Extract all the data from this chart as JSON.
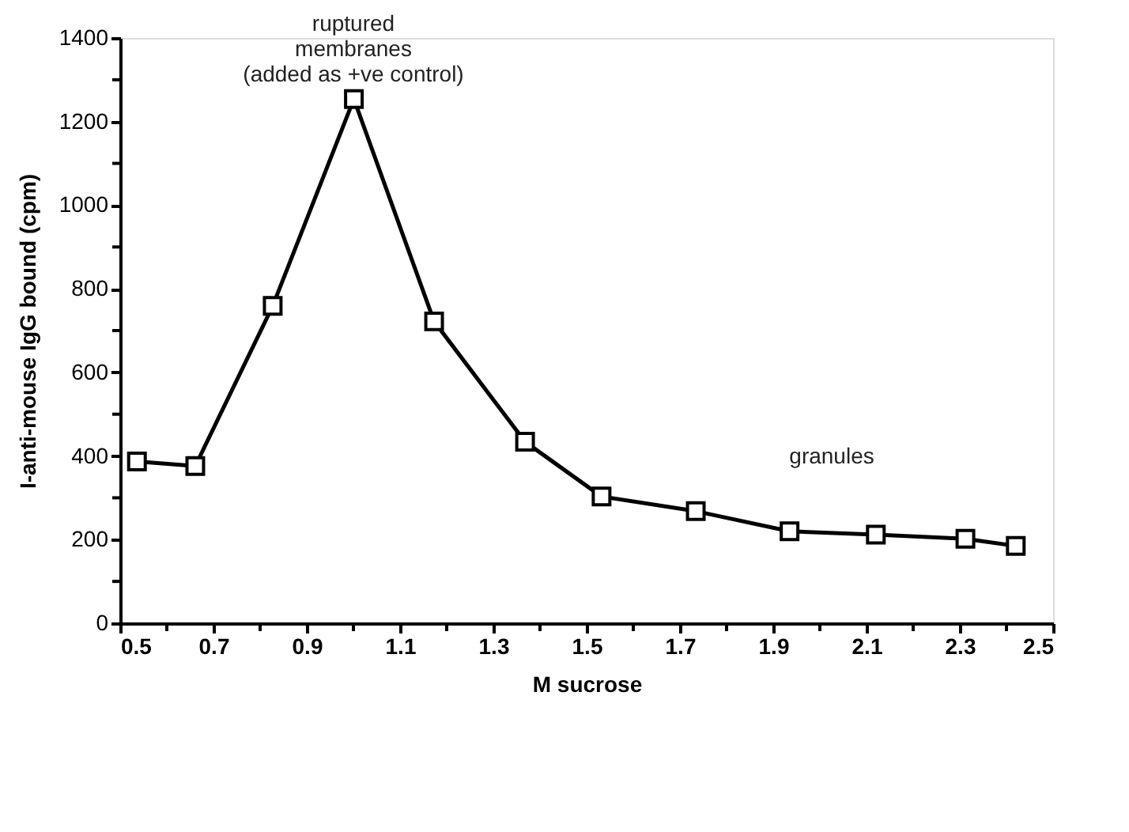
{
  "chart_data": {
    "type": "line",
    "xlabel": "M sucrose",
    "ylabel": "I-anti-mouse IgG bound (cpm)",
    "x": [
      0.536,
      0.661,
      0.827,
      1.001,
      1.173,
      1.368,
      1.532,
      1.734,
      1.935,
      2.12,
      2.312,
      2.42
    ],
    "series": [
      {
        "color": "#000000",
        "values": [
          387,
          376,
          759,
          1254,
          722,
          434,
          303,
          268,
          220,
          212,
          202,
          185
        ]
      }
    ],
    "marker": "square",
    "line_style": "solid",
    "grid": false,
    "xlim": [
      0.5,
      2.5
    ],
    "xticks": [
      0.5,
      {
        "value": 0.6,
        "label": null
      },
      0.7,
      {
        "value": 0.8,
        "label": null
      },
      0.9,
      {
        "value": 1.0,
        "label": null
      },
      1.1,
      {
        "value": 1.2,
        "label": null
      },
      1.3,
      {
        "value": 1.4,
        "label": null
      },
      1.5,
      {
        "value": 1.6,
        "label": null
      },
      1.7,
      {
        "value": 1.8,
        "label": null
      },
      1.9,
      {
        "value": 2.0,
        "label": null
      },
      2.1,
      {
        "value": 2.2,
        "label": null
      },
      2.3,
      {
        "value": 2.4,
        "label": null
      },
      2.5
    ],
    "ylim": [
      0,
      1400
    ],
    "yticks": [
      0,
      {
        "value": 100,
        "label": null
      },
      200,
      {
        "value": 300,
        "label": null
      },
      400,
      {
        "value": 500,
        "label": null
      },
      600,
      {
        "value": 700,
        "label": null
      },
      800,
      {
        "value": 900,
        "label": null
      },
      1000,
      {
        "value": 1100,
        "label": null
      },
      1200,
      {
        "value": 1300,
        "label": null
      },
      1400
    ],
    "annotations": [
      {
        "text": "ruptured\nmembranes\n(added as +ve control)",
        "x": 1.0,
        "y": 1254
      },
      "granules"
    ]
  }
}
